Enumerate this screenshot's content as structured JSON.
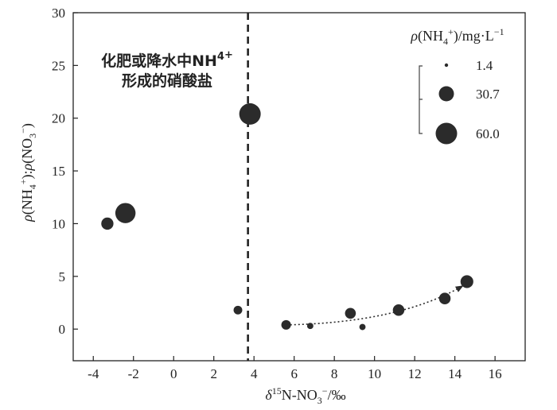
{
  "chart_data": {
    "type": "scatter",
    "xlabel": "δ15N-NO3−/‰",
    "ylabel": "ρ(NH4+):ρ(NO3−)",
    "xlim": [
      -5,
      17.5
    ],
    "ylim": [
      -3,
      30
    ],
    "xticks": [
      "-4",
      "-2",
      "0",
      "2",
      "4",
      "6",
      "8",
      "10",
      "12",
      "14",
      "16"
    ],
    "yticks": [
      "0",
      "5",
      "10",
      "15",
      "20",
      "25",
      "30"
    ],
    "grid": false,
    "vline_x": 3.7,
    "annotation": [
      "化肥或降水中NH4+",
      "形成的硝酸盐"
    ],
    "legend": {
      "title": "ρ(NH4+)/mg·L−1",
      "position": "top-right",
      "entries": [
        {
          "label": "1.4",
          "size": 1.4
        },
        {
          "label": "30.7",
          "size": 30.7
        },
        {
          "label": "60.0",
          "size": 60.0
        }
      ]
    },
    "points": [
      {
        "x": -3.3,
        "y": 10.0,
        "size": 14
      },
      {
        "x": -2.4,
        "y": 11.0,
        "size": 52
      },
      {
        "x": 3.2,
        "y": 1.8,
        "size": 5
      },
      {
        "x": 3.8,
        "y": 20.4,
        "size": 60
      },
      {
        "x": 5.6,
        "y": 0.4,
        "size": 7
      },
      {
        "x": 6.8,
        "y": 0.3,
        "size": 1.4
      },
      {
        "x": 8.8,
        "y": 1.5,
        "size": 10
      },
      {
        "x": 9.4,
        "y": 0.2,
        "size": 1.4
      },
      {
        "x": 11.2,
        "y": 1.8,
        "size": 12
      },
      {
        "x": 13.5,
        "y": 2.9,
        "size": 12
      },
      {
        "x": 14.6,
        "y": 4.5,
        "size": 16
      }
    ],
    "trend_arrow": {
      "from": [
        5.6,
        0.4
      ],
      "to": [
        14.4,
        4.1
      ],
      "style": "dotted"
    },
    "colors": {
      "marker": "#2b2b2b",
      "axis": "#222222"
    }
  }
}
